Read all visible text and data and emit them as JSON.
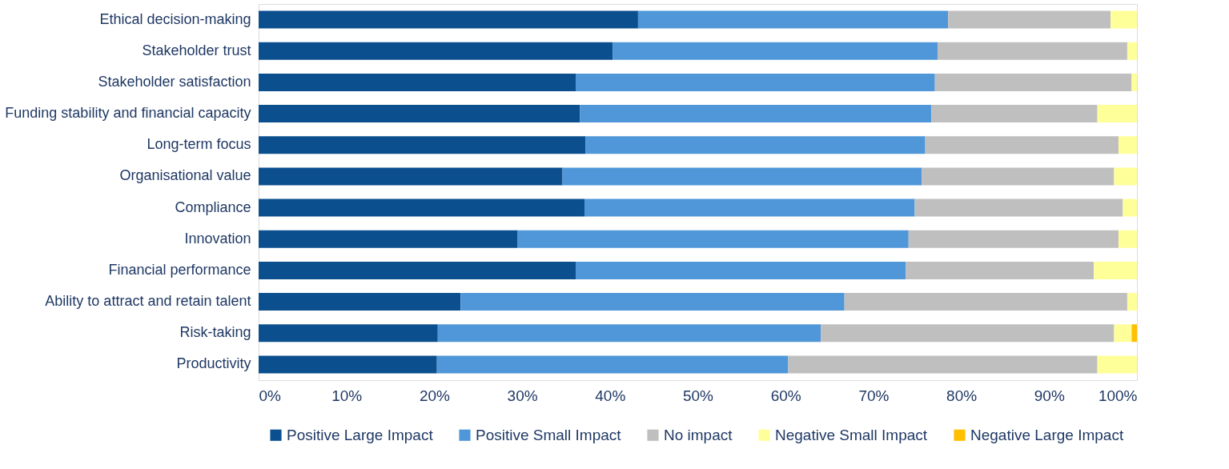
{
  "chart_data": {
    "type": "bar",
    "orientation": "horizontal",
    "stacked": true,
    "legend": "bottom",
    "grid": false,
    "categories": [
      "Ethical decision-making",
      "Stakeholder trust",
      "Stakeholder satisfaction",
      "Funding stability and financial capacity",
      "Long-term focus",
      "Organisational value",
      "Compliance",
      "Innovation",
      "Financial performance",
      "Ability to attract and retain talent",
      "Risk-taking",
      "Productivity"
    ],
    "xlim": [
      0,
      100
    ],
    "xticks": [
      {
        "value": 0,
        "label": "0%"
      },
      {
        "value": 10,
        "label": "10%"
      },
      {
        "value": 20,
        "label": "20%"
      },
      {
        "value": 30,
        "label": "30%"
      },
      {
        "value": 40,
        "label": "40%"
      },
      {
        "value": 50,
        "label": "50%"
      },
      {
        "value": 60,
        "label": "60%"
      },
      {
        "value": 70,
        "label": "70%"
      },
      {
        "value": 80,
        "label": "80%"
      },
      {
        "value": 90,
        "label": "90%"
      },
      {
        "value": 100,
        "label": "100%"
      }
    ],
    "series": [
      {
        "name": "Positive Large Impact",
        "color": "#0b4f8f",
        "values": [
          43.2,
          40.3,
          36.1,
          36.6,
          37.2,
          34.6,
          37.1,
          29.5,
          36.1,
          23.0,
          20.4,
          20.3
        ]
      },
      {
        "name": "Positive Small Impact",
        "color": "#4f97d9",
        "values": [
          35.3,
          37.0,
          40.9,
          40.0,
          38.7,
          40.9,
          37.6,
          44.5,
          37.6,
          43.7,
          43.6,
          40.0
        ]
      },
      {
        "name": "No impact",
        "color": "#bfbfbf",
        "values": [
          18.5,
          21.6,
          22.4,
          18.9,
          22.0,
          21.9,
          23.7,
          23.9,
          21.4,
          32.2,
          33.4,
          35.2
        ]
      },
      {
        "name": "Negative Small Impact",
        "color": "#ffff99",
        "values": [
          3.0,
          1.1,
          0.6,
          4.5,
          2.1,
          2.6,
          1.6,
          2.1,
          4.9,
          1.1,
          2.0,
          4.5
        ]
      },
      {
        "name": "Negative Large Impact",
        "color": "#ffc000",
        "values": [
          null,
          null,
          null,
          null,
          null,
          null,
          null,
          null,
          null,
          null,
          0.6,
          null
        ]
      }
    ]
  }
}
